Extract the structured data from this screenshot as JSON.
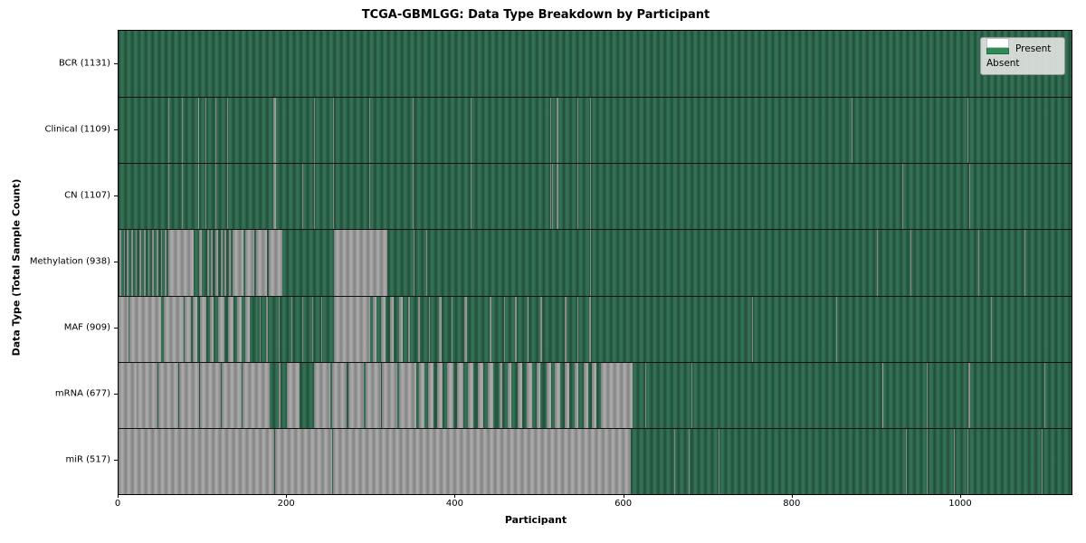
{
  "colors": {
    "present_legend": "#2e8b57",
    "present_edge": "#24523c",
    "present_mid": "#2e6b4f",
    "present_light": "#387257",
    "absent_legend": "#ffffff",
    "absent_edge": "#878787",
    "absent_mid": "#9e9e9e",
    "absent_light": "#adadad"
  },
  "chart_data": {
    "type": "heatmap",
    "title": "TCGA-GBMLGG: Data Type Breakdown by Participant",
    "xlabel": "Participant",
    "ylabel": "Data Type (Total Sample Count)",
    "x_range": [
      0,
      1131
    ],
    "x_ticks": [
      0,
      200,
      400,
      600,
      800,
      1000
    ],
    "legend_labels": [
      "Present",
      "Absent"
    ],
    "legend_position": "upper right",
    "grid": false,
    "cell_states": {
      "present": "dark green",
      "absent": "gray/white"
    },
    "rows": [
      {
        "label": "BCR (1131)",
        "name": "BCR",
        "present_count": 1131,
        "absent_ranges": []
      },
      {
        "label": "Clinical (1109)",
        "name": "Clinical",
        "present_count": 1109,
        "absent_ranges": [
          [
            59,
            60
          ],
          [
            75,
            76
          ],
          [
            94,
            95
          ],
          [
            103,
            104
          ],
          [
            115,
            116
          ],
          [
            129,
            130
          ],
          [
            184,
            187
          ],
          [
            232,
            233
          ],
          [
            255,
            256
          ],
          [
            297,
            299
          ],
          [
            349,
            350
          ],
          [
            418,
            419
          ],
          [
            512,
            513
          ],
          [
            520,
            522
          ],
          [
            545,
            546
          ],
          [
            560,
            561
          ],
          [
            870,
            871
          ],
          [
            1008,
            1009
          ]
        ]
      },
      {
        "label": "CN (1107)",
        "name": "CN",
        "present_count": 1107,
        "absent_ranges": [
          [
            59,
            60
          ],
          [
            75,
            76
          ],
          [
            94,
            95
          ],
          [
            103,
            104
          ],
          [
            115,
            116
          ],
          [
            129,
            130
          ],
          [
            184,
            187
          ],
          [
            218,
            219
          ],
          [
            232,
            233
          ],
          [
            255,
            256
          ],
          [
            297,
            299
          ],
          [
            349,
            350
          ],
          [
            418,
            419
          ],
          [
            512,
            513
          ],
          [
            515,
            516
          ],
          [
            520,
            522
          ],
          [
            545,
            546
          ],
          [
            560,
            561
          ],
          [
            930,
            931
          ],
          [
            1010,
            1011
          ]
        ]
      },
      {
        "label": "Methylation (938)",
        "name": "Methylation",
        "present_count": 938,
        "absent_ranges": [
          [
            1,
            3
          ],
          [
            6,
            8
          ],
          [
            10,
            12
          ],
          [
            15,
            17
          ],
          [
            20,
            22
          ],
          [
            25,
            27
          ],
          [
            30,
            32
          ],
          [
            35,
            37
          ],
          [
            40,
            42
          ],
          [
            45,
            47
          ],
          [
            50,
            52
          ],
          [
            55,
            57
          ],
          [
            59,
            89
          ],
          [
            96,
            99
          ],
          [
            105,
            107
          ],
          [
            110,
            112
          ],
          [
            115,
            118
          ],
          [
            121,
            123
          ],
          [
            126,
            128
          ],
          [
            131,
            133
          ],
          [
            135,
            148
          ],
          [
            150,
            161
          ],
          [
            163,
            176
          ],
          [
            178,
            194
          ],
          [
            256,
            319
          ],
          [
            350,
            351
          ],
          [
            365,
            366
          ],
          [
            560,
            561
          ],
          [
            900,
            901
          ],
          [
            940,
            941
          ],
          [
            1020,
            1021
          ],
          [
            1075,
            1076
          ]
        ]
      },
      {
        "label": "MAF (909)",
        "name": "MAF",
        "present_count": 909,
        "absent_ranges": [
          [
            0,
            12
          ],
          [
            13,
            50
          ],
          [
            54,
            77
          ],
          [
            78,
            86
          ],
          [
            88,
            93
          ],
          [
            97,
            104
          ],
          [
            108,
            113
          ],
          [
            118,
            126
          ],
          [
            130,
            136
          ],
          [
            141,
            146
          ],
          [
            150,
            156
          ],
          [
            168,
            169
          ],
          [
            175,
            177
          ],
          [
            190,
            191
          ],
          [
            205,
            206
          ],
          [
            218,
            219
          ],
          [
            230,
            231
          ],
          [
            241,
            242
          ],
          [
            256,
            299
          ],
          [
            302,
            306
          ],
          [
            312,
            317
          ],
          [
            322,
            326
          ],
          [
            333,
            337
          ],
          [
            344,
            346
          ],
          [
            355,
            358
          ],
          [
            368,
            369
          ],
          [
            380,
            383
          ],
          [
            395,
            396
          ],
          [
            410,
            413
          ],
          [
            440,
            442
          ],
          [
            458,
            459
          ],
          [
            470,
            473
          ],
          [
            485,
            486
          ],
          [
            500,
            503
          ],
          [
            530,
            532
          ],
          [
            545,
            546
          ],
          [
            558,
            561
          ],
          [
            752,
            753
          ],
          [
            852,
            853
          ],
          [
            1035,
            1036
          ]
        ]
      },
      {
        "label": "mRNA (677)",
        "name": "mRNA",
        "present_count": 677,
        "absent_ranges": [
          [
            0,
            21
          ],
          [
            22,
            46
          ],
          [
            47,
            71
          ],
          [
            72,
            96
          ],
          [
            97,
            121
          ],
          [
            122,
            146
          ],
          [
            147,
            179
          ],
          [
            190,
            192
          ],
          [
            200,
            215
          ],
          [
            232,
            251
          ],
          [
            253,
            271
          ],
          [
            273,
            291
          ],
          [
            293,
            311
          ],
          [
            313,
            331
          ],
          [
            333,
            353
          ],
          [
            357,
            363
          ],
          [
            367,
            374
          ],
          [
            378,
            384
          ],
          [
            390,
            397
          ],
          [
            402,
            409
          ],
          [
            415,
            421
          ],
          [
            426,
            433
          ],
          [
            438,
            445
          ],
          [
            452,
            455
          ],
          [
            462,
            466
          ],
          [
            474,
            479
          ],
          [
            484,
            491
          ],
          [
            496,
            501
          ],
          [
            508,
            513
          ],
          [
            518,
            524
          ],
          [
            530,
            535
          ],
          [
            541,
            546
          ],
          [
            552,
            557
          ],
          [
            562,
            567
          ],
          [
            572,
            610
          ],
          [
            625,
            626
          ],
          [
            680,
            681
          ],
          [
            906,
            907
          ],
          [
            959,
            960
          ],
          [
            1009,
            1011
          ],
          [
            1099,
            1100
          ]
        ]
      },
      {
        "label": "miR (517)",
        "name": "miR",
        "present_count": 517,
        "absent_ranges": [
          [
            0,
            185
          ],
          [
            186,
            254
          ],
          [
            255,
            608
          ],
          [
            660,
            661
          ],
          [
            677,
            678
          ],
          [
            712,
            713
          ],
          [
            934,
            935
          ],
          [
            959,
            960
          ],
          [
            991,
            992
          ],
          [
            1008,
            1009
          ],
          [
            1096,
            1097
          ]
        ]
      }
    ]
  }
}
